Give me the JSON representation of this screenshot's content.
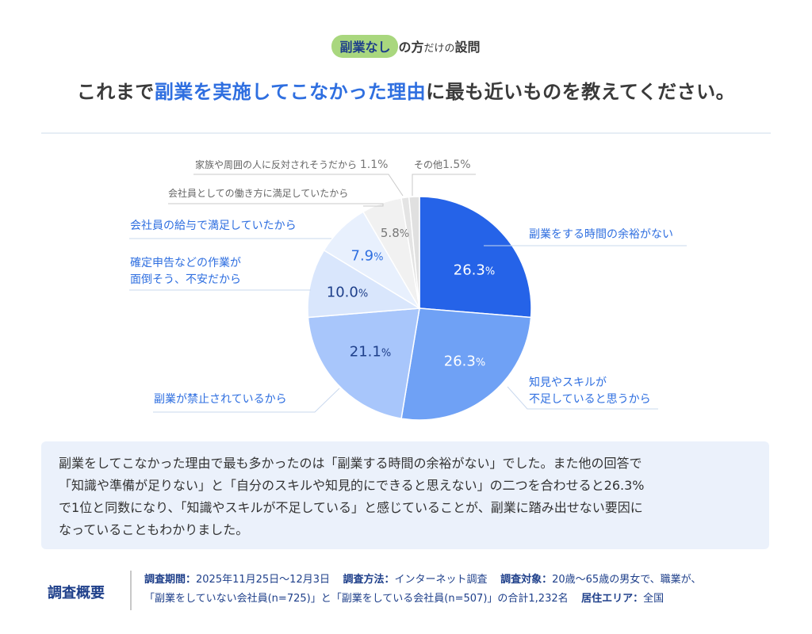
{
  "header": {
    "pill": "副業なし",
    "after_pill_1": "の方",
    "after_pill_2": "だけの",
    "after_pill_3": "設問",
    "title_prefix": "これまで",
    "title_highlight": "副業を実施してこなかった理由",
    "title_suffix": "に最も近いものを教えてください。"
  },
  "colors": {
    "accent": "#2f6fe0",
    "navy": "#1e3f8a",
    "pill": "#a9d77e",
    "summary_bg": "#ebf1fb"
  },
  "chart_data": {
    "type": "pie",
    "title": "これまで副業を実施してこなかった理由に最も近いものを教えてください。",
    "start_angle": "12 o'clock, clockwise",
    "categories": [
      "副業をする時間の余裕がない",
      "知見やスキルが不足していると思うから",
      "副業が禁止されているから",
      "確定申告などの作業が面倒そう、不安だから",
      "会社員の給与で満足していたから",
      "会社員としての働き方に満足していたから",
      "家族や周囲の人に反対されそうだから",
      "その他"
    ],
    "values": [
      26.3,
      26.3,
      21.1,
      10.0,
      7.9,
      5.8,
      1.1,
      1.5
    ],
    "unit": "%",
    "colors": [
      "#2563e8",
      "#6fa1f5",
      "#a8c6fb",
      "#d9e6fc",
      "#e8f0fd",
      "#f1f1f1",
      "#e4e4e4",
      "#e0e0e0"
    ],
    "label_colors": [
      "#ffffff",
      "#ffffff",
      "#1e3f8a",
      "#1e3f8a",
      "#2f6fe0",
      "#777777",
      "#777777",
      "#777777"
    ],
    "legend": "none (leader-line labels)"
  },
  "labels": {
    "time": "副業をする時間の余裕がない",
    "skill_1": "知見やスキルが",
    "skill_2": "不足していると思うから",
    "prohibited": "副業が禁止されているから",
    "tax_1": "確定申告などの作業が",
    "tax_2": "面倒そう、不安だから",
    "salary": "会社員の給与で満足していたから",
    "workstyle": "会社員としての働き方に満足していたから",
    "family": "家族や周囲の人に反対されそうだから",
    "family_pct": "1.1%",
    "other": "その他",
    "other_pct": "1.5%"
  },
  "values_display": {
    "time": "26.3",
    "skill": "26.3",
    "prohibited": "21.1",
    "tax": "10.0",
    "salary": "7.9",
    "workstyle": "5.8",
    "pct": "%"
  },
  "summary": {
    "line1": "副業をしてこなかった理由で最も多かったのは「副業する時間の余裕がない」でした。また他の回答で",
    "line2": "「知識や準備が足りない」と「自分のスキルや知見的にできると思えない」の二つを合わせると26.3%",
    "line3": "で1位と同数になり、「知識やスキルが不足している」と感じていることが、副業に踏み出せない要因に",
    "line4": "なっていることもわかりました。"
  },
  "survey": {
    "title": "調査概要",
    "period_label": "調査期間：",
    "period": "2025年11月25日〜12月3日",
    "method_label": "調査方法：",
    "method": "インターネット調査",
    "target_label": "調査対象：",
    "target": "20歳〜65歳の男女で、職業が、",
    "target_line2": "「副業をしていない会社員(n=725)」と「副業をしている会社員(n=507)」の合計1,232名",
    "area_label": "居住エリア：",
    "area": "全国"
  }
}
